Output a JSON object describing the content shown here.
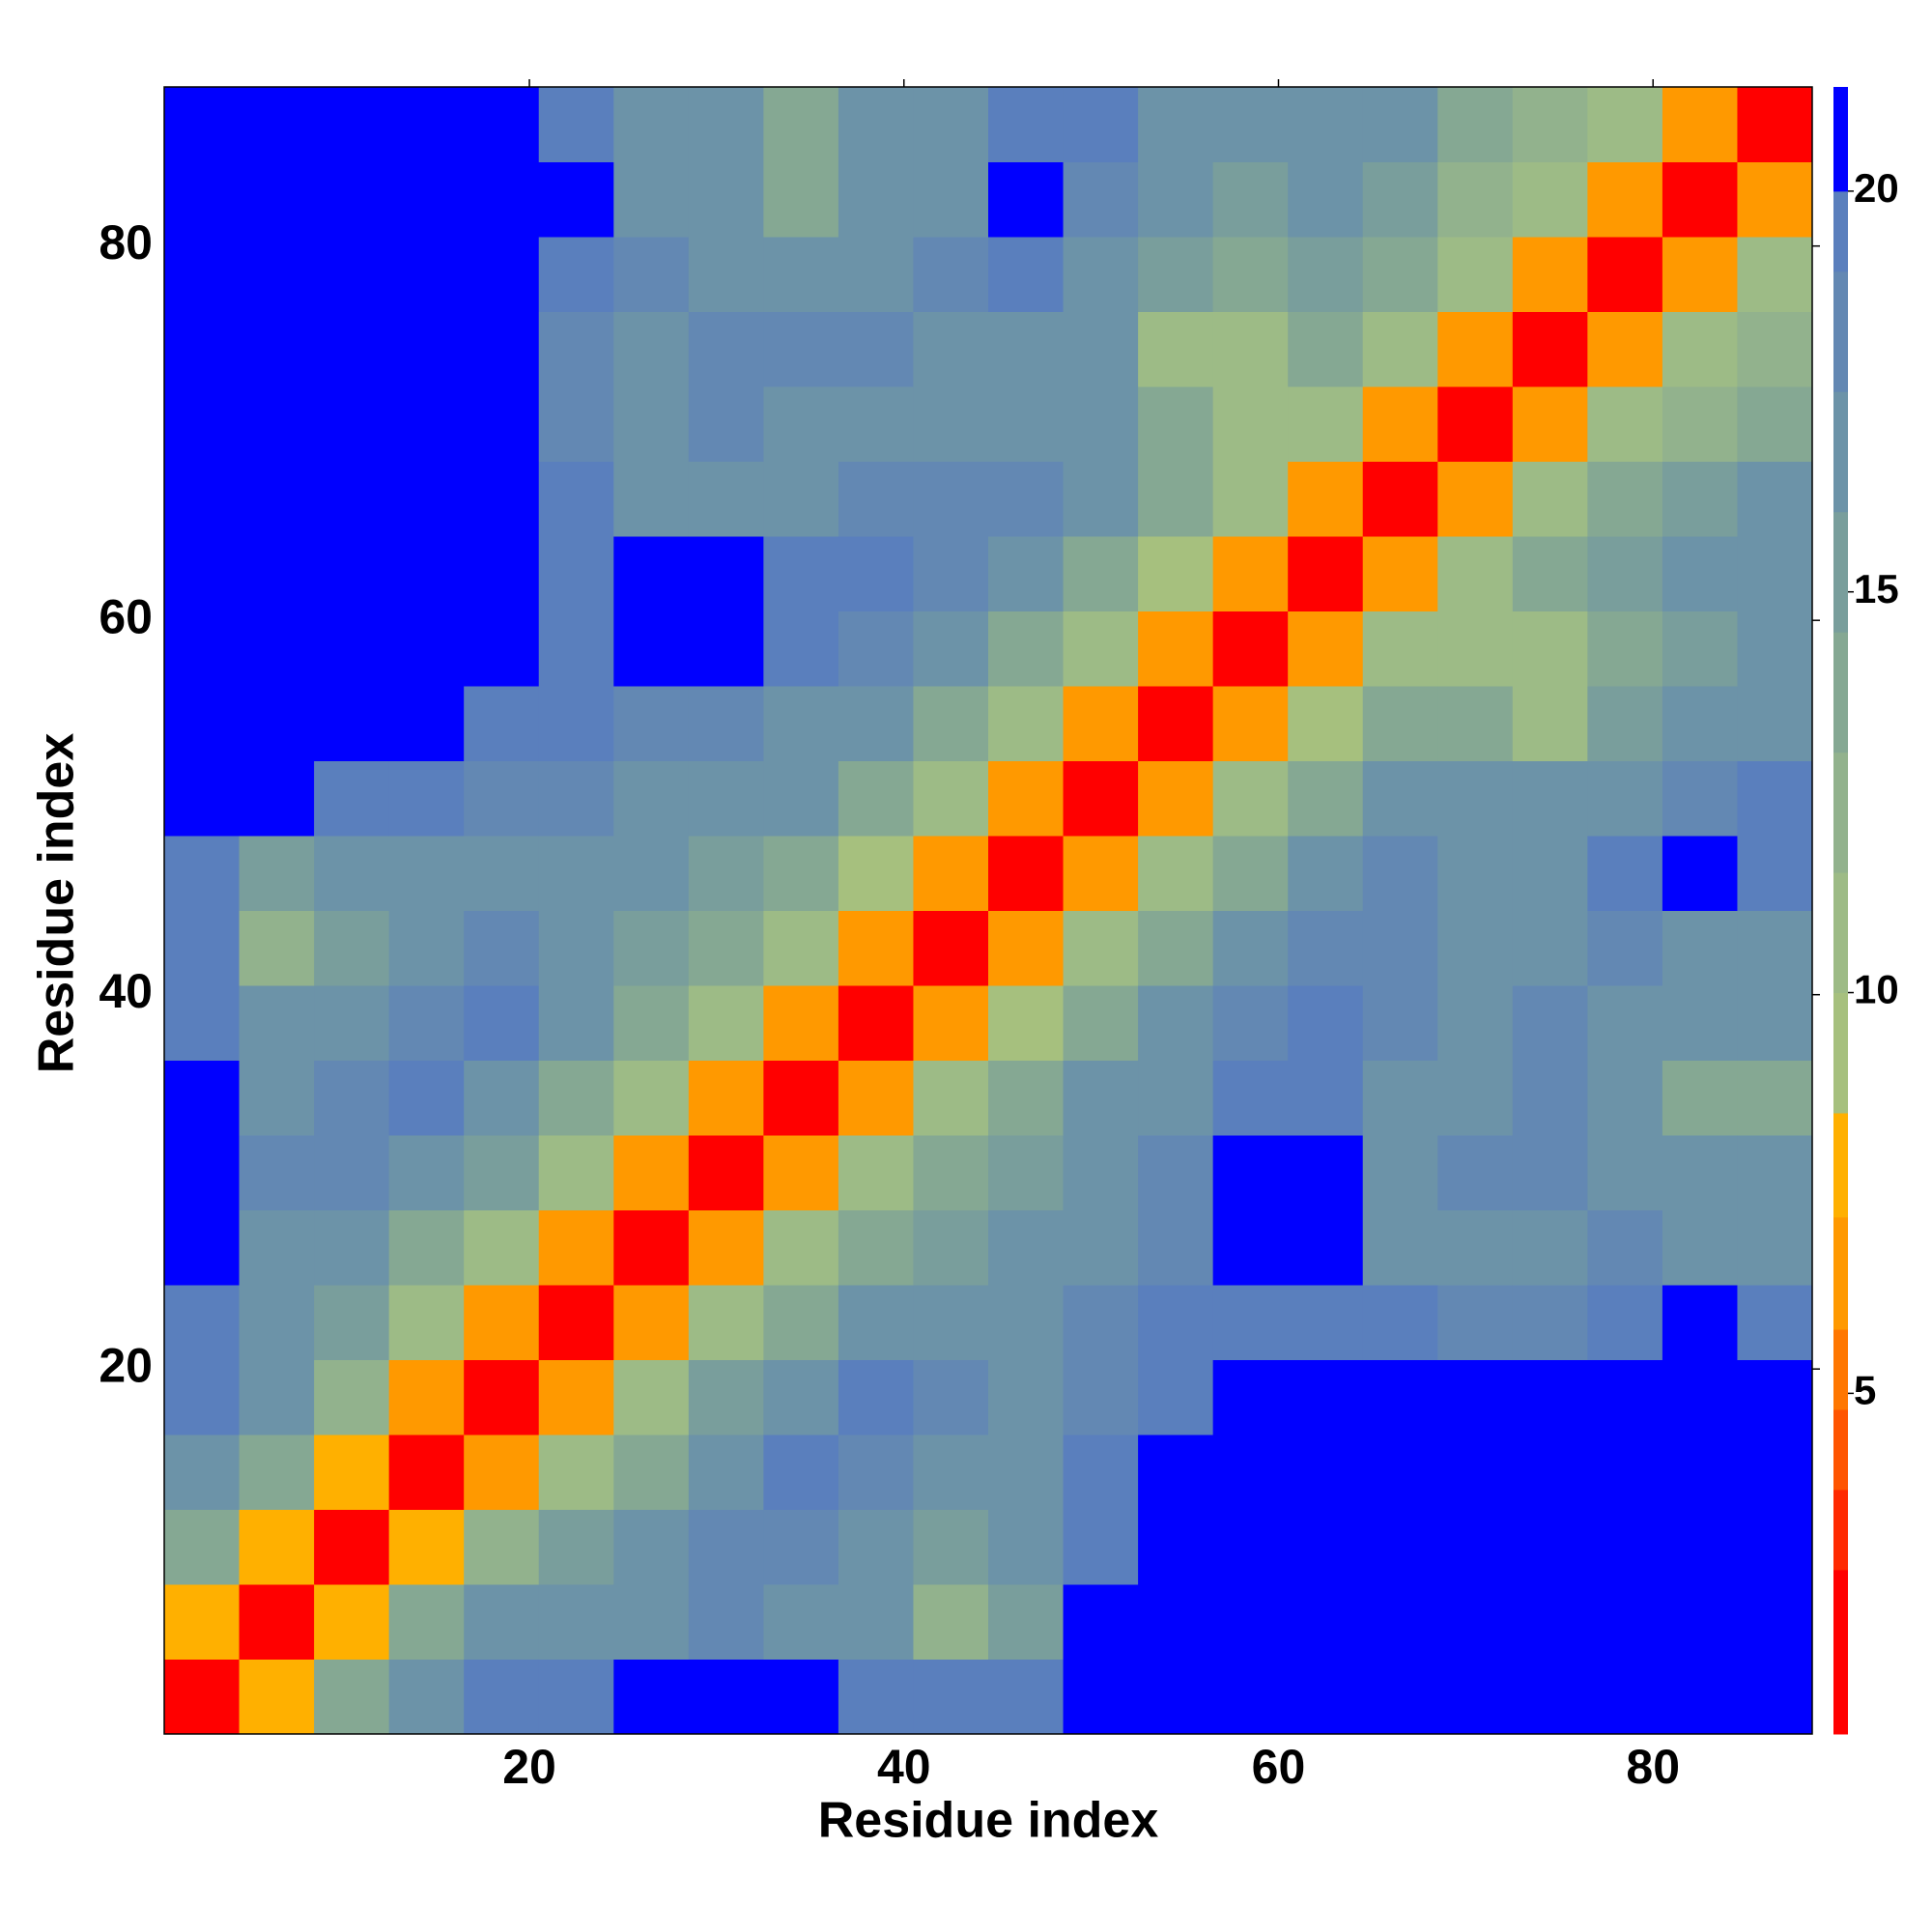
{
  "chart_data": {
    "type": "heatmap",
    "xlabel": "Residue index",
    "ylabel": "Residue index",
    "xlim": [
      0.5,
      88.5
    ],
    "ylim": [
      0.5,
      88.5
    ],
    "xticks": [
      20,
      40,
      60,
      80
    ],
    "yticks": [
      20,
      40,
      60,
      80
    ],
    "xbins": [
      0.5,
      4.5,
      8.5,
      12.5,
      16.5,
      20.5,
      24.5,
      28.5,
      32.5,
      36.5,
      40.5,
      44.5,
      48.5,
      52.5,
      56.5,
      60.5,
      64.5,
      68.5,
      72.5,
      76.5,
      80.5,
      84.5,
      88.5
    ],
    "ybins": [
      0.5,
      4.5,
      8.5,
      12.5,
      16.5,
      20.5,
      24.5,
      28.5,
      32.5,
      36.5,
      40.5,
      44.5,
      48.5,
      52.5,
      56.5,
      60.5,
      64.5,
      68.5,
      72.5,
      76.5,
      80.5,
      84.5,
      88.5
    ],
    "values": [
      [
        2,
        8,
        14,
        17,
        19,
        19,
        20,
        20,
        20,
        19,
        19,
        19,
        20,
        21,
        21,
        21,
        21,
        21,
        21,
        21,
        21,
        21
      ],
      [
        8,
        2,
        8,
        13,
        16,
        17,
        17,
        18,
        17,
        16,
        12,
        15,
        20,
        21,
        21,
        21,
        21,
        21,
        21,
        21,
        21,
        21
      ],
      [
        14,
        8,
        2,
        8,
        12,
        15,
        17,
        18,
        18,
        16,
        15,
        16,
        19,
        20,
        21,
        21,
        21,
        21,
        21,
        21,
        21,
        21
      ],
      [
        17,
        13,
        8,
        2,
        7,
        11,
        14,
        17,
        19,
        18,
        16,
        17,
        19,
        20,
        20,
        21,
        21,
        21,
        21,
        21,
        21,
        21
      ],
      [
        19,
        16,
        12,
        7,
        2,
        7,
        11,
        15,
        17,
        19,
        18,
        17,
        18,
        19,
        20,
        21,
        20,
        20,
        21,
        21,
        21,
        21
      ],
      [
        19,
        17,
        15,
        11,
        7,
        2,
        7,
        11,
        14,
        16,
        17,
        16,
        18,
        19,
        19,
        19,
        19,
        18,
        18,
        19,
        20,
        19
      ],
      [
        20,
        17,
        17,
        14,
        11,
        7,
        2,
        7,
        10,
        13,
        15,
        16,
        17,
        18,
        20,
        20,
        17,
        17,
        17,
        18,
        17,
        17
      ],
      [
        20,
        18,
        18,
        17,
        15,
        11,
        7,
        2,
        6,
        10,
        13,
        15,
        17,
        18,
        20,
        20,
        17,
        18,
        18,
        17,
        17,
        17
      ],
      [
        20,
        17,
        18,
        19,
        17,
        14,
        10,
        6,
        2,
        6,
        10,
        13,
        16,
        17,
        19,
        19,
        17,
        17,
        18,
        16,
        13,
        13
      ],
      [
        19,
        16,
        16,
        18,
        19,
        16,
        13,
        10,
        6,
        2,
        6,
        9,
        13,
        16,
        18,
        19,
        18,
        17,
        18,
        17,
        16,
        17
      ],
      [
        19,
        12,
        15,
        16,
        18,
        17,
        15,
        13,
        10,
        6,
        2,
        6,
        10,
        13,
        16,
        18,
        18,
        17,
        17,
        18,
        17,
        16
      ],
      [
        19,
        15,
        16,
        17,
        17,
        16,
        16,
        15,
        13,
        9,
        6,
        2,
        7,
        10,
        14,
        17,
        18,
        16,
        17,
        19,
        20,
        19
      ],
      [
        20,
        20,
        19,
        19,
        18,
        18,
        17,
        17,
        16,
        13,
        10,
        7,
        2,
        6,
        10,
        14,
        16,
        17,
        16,
        17,
        18,
        19
      ],
      [
        21,
        21,
        20,
        20,
        19,
        19,
        18,
        18,
        17,
        16,
        13,
        10,
        6,
        2,
        6,
        9,
        13,
        13,
        11,
        15,
        16,
        17
      ],
      [
        21,
        21,
        21,
        20,
        20,
        19,
        20,
        20,
        19,
        18,
        16,
        14,
        10,
        6,
        2,
        6,
        10,
        10,
        11,
        13,
        15,
        16
      ],
      [
        21,
        21,
        21,
        21,
        21,
        19,
        20,
        20,
        19,
        19,
        18,
        17,
        14,
        9,
        6,
        2,
        7,
        10,
        14,
        15,
        16,
        17
      ],
      [
        21,
        21,
        21,
        21,
        20,
        19,
        17,
        17,
        17,
        18,
        18,
        18,
        16,
        13,
        10,
        7,
        2,
        7,
        10,
        13,
        15,
        16
      ],
      [
        21,
        21,
        21,
        21,
        20,
        18,
        17,
        18,
        17,
        17,
        17,
        16,
        17,
        13,
        10,
        10,
        7,
        2,
        7,
        10,
        12,
        14
      ],
      [
        21,
        21,
        21,
        21,
        21,
        18,
        17,
        18,
        18,
        18,
        17,
        17,
        16,
        11,
        11,
        14,
        10,
        7,
        2,
        7,
        10,
        12
      ],
      [
        21,
        21,
        21,
        21,
        21,
        19,
        18,
        17,
        16,
        17,
        18,
        19,
        17,
        15,
        13,
        15,
        13,
        10,
        7,
        2,
        7,
        10
      ],
      [
        21,
        21,
        21,
        21,
        21,
        20,
        17,
        17,
        13,
        16,
        17,
        20,
        18,
        16,
        15,
        16,
        15,
        12,
        10,
        7,
        2,
        7
      ],
      [
        21,
        21,
        21,
        21,
        21,
        19,
        17,
        17,
        13,
        17,
        16,
        19,
        19,
        17,
        16,
        17,
        16,
        14,
        12,
        10,
        7,
        2
      ]
    ],
    "colorbar": {
      "lim": [
        0.75,
        21.3
      ],
      "ticks": [
        5,
        10,
        15,
        20
      ],
      "bands": [
        {
          "from": 0.75,
          "to": 2.8,
          "color": "#ff0000"
        },
        {
          "from": 2.8,
          "to": 3.8,
          "color": "#ff2a00"
        },
        {
          "from": 3.8,
          "to": 4.8,
          "color": "#ff5500"
        },
        {
          "from": 4.8,
          "to": 5.8,
          "color": "#ff7700"
        },
        {
          "from": 5.8,
          "to": 7.2,
          "color": "#ff9900"
        },
        {
          "from": 7.2,
          "to": 8.5,
          "color": "#ffb000"
        },
        {
          "from": 8.5,
          "to": 10,
          "color": "#a6c07e"
        },
        {
          "from": 10,
          "to": 11.5,
          "color": "#9dbb86"
        },
        {
          "from": 11.5,
          "to": 13,
          "color": "#92b28d"
        },
        {
          "from": 13,
          "to": 14.5,
          "color": "#85a893"
        },
        {
          "from": 14.5,
          "to": 16,
          "color": "#799e9c"
        },
        {
          "from": 16,
          "to": 17.5,
          "color": "#6c93a8"
        },
        {
          "from": 17.5,
          "to": 19,
          "color": "#6388b3"
        },
        {
          "from": 19,
          "to": 20,
          "color": "#5a7fbd"
        },
        {
          "from": 20,
          "to": 21.3,
          "color": "#0000ff"
        }
      ]
    }
  }
}
